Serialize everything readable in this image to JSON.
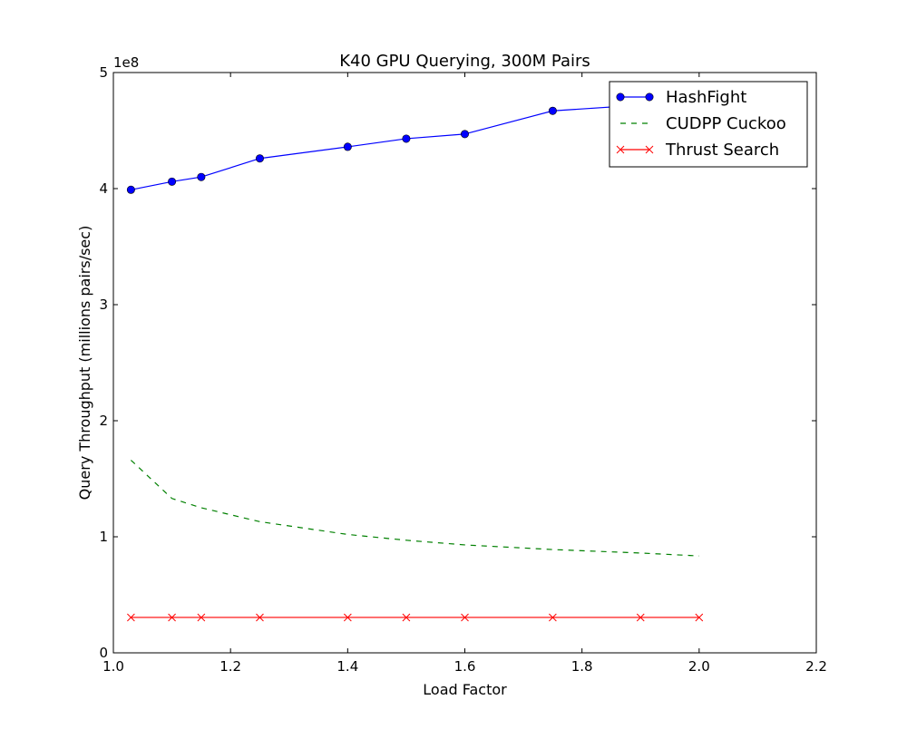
{
  "chart_data": {
    "type": "line",
    "title": "K40 GPU Querying, 300M Pairs",
    "xlabel": "Load Factor",
    "ylabel": "Query Throughput (millions pairs/sec)",
    "xlim": [
      1.0,
      2.2
    ],
    "ylim": [
      0,
      500000000
    ],
    "x_ticks": [
      1.0,
      1.2,
      1.4,
      1.6,
      1.8,
      2.0,
      2.2
    ],
    "x_tick_labels": [
      "1.0",
      "1.2",
      "1.4",
      "1.6",
      "1.8",
      "2.0",
      "2.2"
    ],
    "y_ticks": [
      0,
      100000000,
      200000000,
      300000000,
      400000000,
      500000000
    ],
    "y_tick_labels": [
      "0",
      "1",
      "2",
      "3",
      "4",
      "5"
    ],
    "y_offset_label": "1e8",
    "grid": false,
    "legend_position": "top-right",
    "series": [
      {
        "name": "HashFight",
        "color": "#0000ff",
        "line_style": "solid",
        "marker": "circle",
        "x": [
          1.03,
          1.1,
          1.15,
          1.25,
          1.4,
          1.5,
          1.6,
          1.75,
          1.9,
          2.0
        ],
        "y": [
          399000000,
          406000000,
          410000000,
          426000000,
          436000000,
          443000000,
          447000000,
          467000000,
          472000000,
          478000000
        ]
      },
      {
        "name": "CUDPP Cuckoo",
        "color": "#008000",
        "line_style": "dashed",
        "marker": "none",
        "x": [
          1.03,
          1.1,
          1.15,
          1.25,
          1.4,
          1.5,
          1.6,
          1.75,
          1.9,
          2.0
        ],
        "y": [
          166000000,
          133000000,
          125000000,
          113000000,
          102000000,
          97000000,
          93000000,
          89000000,
          86000000,
          83500000
        ]
      },
      {
        "name": "Thrust Search",
        "color": "#ff0000",
        "line_style": "solid",
        "marker": "x",
        "x": [
          1.03,
          1.1,
          1.15,
          1.25,
          1.4,
          1.5,
          1.6,
          1.75,
          1.9,
          2.0
        ],
        "y": [
          30500000,
          30500000,
          30500000,
          30500000,
          30500000,
          30500000,
          30500000,
          30500000,
          30500000,
          30500000
        ]
      }
    ]
  }
}
